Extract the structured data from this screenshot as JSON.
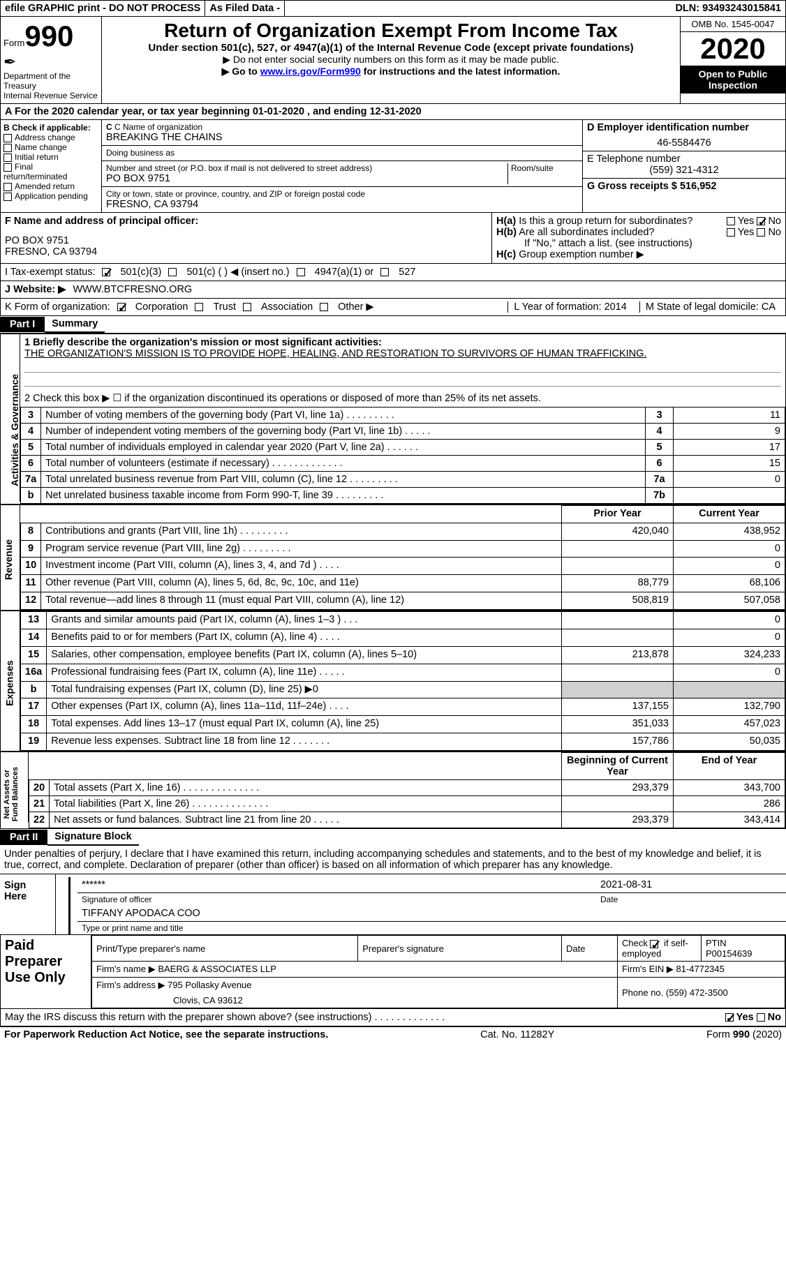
{
  "topbar": {
    "efile": "efile GRAPHIC print - DO NOT PROCESS",
    "asfiled": "As Filed Data -",
    "dln": "DLN: 93493243015841"
  },
  "header": {
    "form": "Form",
    "num": "990",
    "dept": "Department of the Treasury\nInternal Revenue Service",
    "title": "Return of Organization Exempt From Income Tax",
    "sub": "Under section 501(c), 527, or 4947(a)(1) of the Internal Revenue Code (except private foundations)",
    "note1": "▶ Do not enter social security numbers on this form as it may be made public.",
    "note2_pre": "▶ Go to ",
    "note2_link": "www.irs.gov/Form990",
    "note2_post": " for instructions and the latest information.",
    "omb": "OMB No. 1545-0047",
    "year": "2020",
    "open": "Open to Public Inspection"
  },
  "A": "A  For the 2020 calendar year, or tax year beginning 01-01-2020   , and ending 12-31-2020",
  "B": {
    "label": "B Check if applicable:",
    "items": [
      "Address change",
      "Name change",
      "Initial return",
      "Final return/terminated",
      "Amended return",
      "Application pending"
    ]
  },
  "C": {
    "label": "C Name of organization",
    "org": "BREAKING THE CHAINS",
    "dba_label": "Doing business as",
    "addr_label": "Number and street (or P.O. box if mail is not delivered to street address)",
    "room_label": "Room/suite",
    "addr": "PO BOX 9751",
    "city_label": "City or town, state or province, country, and ZIP or foreign postal code",
    "city": "FRESNO, CA  93794"
  },
  "D": {
    "label": "D Employer identification number",
    "val": "46-5584476"
  },
  "E": {
    "label": "E Telephone number",
    "val": "(559) 321-4312"
  },
  "G": {
    "label": "G Gross receipts $ 516,952"
  },
  "F": {
    "label": "F  Name and address of principal officer:",
    "l1": "PO BOX 9751",
    "l2": "FRESNO, CA  93794"
  },
  "H": {
    "a": "H(a)  Is this a group return for subordinates?",
    "yes": "Yes",
    "no": "No",
    "b": "H(b)  Are all subordinates included?",
    "bnote": "If \"No,\" attach a list. (see instructions)",
    "c": "H(c)  Group exemption number ▶"
  },
  "I": {
    "label": "I   Tax-exempt status:",
    "t1": "501(c)(3)",
    "t2": "501(c) (   ) ◀ (insert no.)",
    "t3": "4947(a)(1) or",
    "t4": "527"
  },
  "J": {
    "label": "J   Website: ▶",
    "val": "WWW.BTCFRESNO.ORG"
  },
  "K": {
    "label": "K Form of organization:",
    "o1": "Corporation",
    "o2": "Trust",
    "o3": "Association",
    "o4": "Other ▶"
  },
  "L": "L Year of formation: 2014",
  "M": "M State of legal domicile: CA",
  "partI": {
    "tag": "Part I",
    "name": "Summary"
  },
  "summary": {
    "l1": "1 Briefly describe the organization's mission or most significant activities:",
    "mission": "THE ORGANIZATION'S MISSION IS TO PROVIDE HOPE, HEALING, AND RESTORATION TO SURVIVORS OF HUMAN TRAFFICKING.",
    "l2": "2   Check this box ▶ ☐  if the organization discontinued its operations or disposed of more than 25% of its net assets.",
    "rows_ag": [
      {
        "n": "3",
        "t": "Number of voting members of the governing body (Part VI, line 1a)  .   .   .   .   .   .   .   .   .",
        "c": "3",
        "v": "11"
      },
      {
        "n": "4",
        "t": "Number of independent voting members of the governing body (Part VI, line 1b)   .    .    .    .    .",
        "c": "4",
        "v": "9"
      },
      {
        "n": "5",
        "t": "Total number of individuals employed in calendar year 2020 (Part V, line 2a)   .    .    .    .    .    .",
        "c": "5",
        "v": "17"
      },
      {
        "n": "6",
        "t": "Total number of volunteers (estimate if necessary)   .    .    .    .    .    .    .    .    .    .    .    .    .",
        "c": "6",
        "v": "15"
      },
      {
        "n": "7a",
        "t": "Total unrelated business revenue from Part VIII, column (C), line 12   .    .    .    .    .    .    .    .    .",
        "c": "7a",
        "v": "0"
      },
      {
        "n": "b",
        "t": "Net unrelated business taxable income from Form 990-T, line 39   .    .    .    .    .    .    .    .    .",
        "c": "7b",
        "v": ""
      }
    ],
    "hdr_prior": "Prior Year",
    "hdr_curr": "Current Year",
    "rows_rev": [
      {
        "n": "8",
        "t": "Contributions and grants (Part VIII, line 1h)   .    .    .    .    .    .    .    .    .",
        "p": "420,040",
        "c": "438,952"
      },
      {
        "n": "9",
        "t": "Program service revenue (Part VIII, line 2g)   .    .    .    .    .    .    .    .    .",
        "p": "",
        "c": "0"
      },
      {
        "n": "10",
        "t": "Investment income (Part VIII, column (A), lines 3, 4, and 7d )   .    .    .    .",
        "p": "",
        "c": "0"
      },
      {
        "n": "11",
        "t": "Other revenue (Part VIII, column (A), lines 5, 6d, 8c, 9c, 10c, and 11e)",
        "p": "88,779",
        "c": "68,106"
      },
      {
        "n": "12",
        "t": "Total revenue—add lines 8 through 11 (must equal Part VIII, column (A), line 12)",
        "p": "508,819",
        "c": "507,058"
      }
    ],
    "rows_exp": [
      {
        "n": "13",
        "t": "Grants and similar amounts paid (Part IX, column (A), lines 1–3 )   .    .    .",
        "p": "",
        "c": "0"
      },
      {
        "n": "14",
        "t": "Benefits paid to or for members (Part IX, column (A), line 4)   .    .    .    .",
        "p": "",
        "c": "0"
      },
      {
        "n": "15",
        "t": "Salaries, other compensation, employee benefits (Part IX, column (A), lines 5–10)",
        "p": "213,878",
        "c": "324,233"
      },
      {
        "n": "16a",
        "t": "Professional fundraising fees (Part IX, column (A), line 11e)   .    .    .    .    .",
        "p": "",
        "c": "0"
      },
      {
        "n": "b",
        "t": "Total fundraising expenses (Part IX, column (D), line 25) ▶0",
        "p": "GREY",
        "c": "GREY"
      },
      {
        "n": "17",
        "t": "Other expenses (Part IX, column (A), lines 11a–11d, 11f–24e)   .    .    .    .",
        "p": "137,155",
        "c": "132,790"
      },
      {
        "n": "18",
        "t": "Total expenses. Add lines 13–17 (must equal Part IX, column (A), line 25)",
        "p": "351,033",
        "c": "457,023"
      },
      {
        "n": "19",
        "t": "Revenue less expenses. Subtract line 18 from line 12 .    .    .    .    .    .    .",
        "p": "157,786",
        "c": "50,035"
      }
    ],
    "hdr_boy": "Beginning of Current Year",
    "hdr_eoy": "End of Year",
    "rows_net": [
      {
        "n": "20",
        "t": "Total assets (Part X, line 16)   .    .    .    .    .    .    .    .    .    .    .    .    .    .",
        "p": "293,379",
        "c": "343,700"
      },
      {
        "n": "21",
        "t": "Total liabilities (Part X, line 26)   .    .    .    .    .    .    .    .    .    .    .    .    .    .",
        "p": "",
        "c": "286"
      },
      {
        "n": "22",
        "t": "Net assets or fund balances. Subtract line 21 from line 20 .    .    .    .    .",
        "p": "293,379",
        "c": "343,414"
      }
    ]
  },
  "side": {
    "ag": "Activities & Governance",
    "rev": "Revenue",
    "exp": "Expenses",
    "net": "Net Assets or\nFund Balances"
  },
  "partII": {
    "tag": "Part II",
    "name": "Signature Block"
  },
  "declare": "Under penalties of perjury, I declare that I have examined this return, including accompanying schedules and statements, and to the best of my knowledge and belief, it is true, correct, and complete. Declaration of preparer (other than officer) is based on all information of which preparer has any knowledge.",
  "sign": {
    "here": "Sign Here",
    "stars": "******",
    "sigof": "Signature of officer",
    "date": "2021-08-31",
    "datel": "Date",
    "name": "TIFFANY APODACA COO",
    "namel": "Type or print name and title"
  },
  "paid": {
    "title": "Paid Preparer Use Only",
    "h1": "Print/Type preparer's name",
    "h2": "Preparer's signature",
    "h3": "Date",
    "h4a": "Check",
    "h4b": "if self-employed",
    "h5": "PTIN",
    "ptin": "P00154639",
    "firm": "Firm's name    ▶ BAERG & ASSOCIATES LLP",
    "ein": "Firm's EIN ▶ 81-4772345",
    "addr": "Firm's address ▶ 795 Pollasky Avenue",
    "addr2": "Clovis, CA  93612",
    "phone": "Phone no. (559) 472-3500"
  },
  "discuss": "May the IRS discuss this return with the preparer shown above? (see instructions)   .    .    .    .    .    .    .    .    .    .    .    .    .",
  "footer": {
    "left": "For Paperwork Reduction Act Notice, see the separate instructions.",
    "mid": "Cat. No. 11282Y",
    "right": "Form 990 (2020)"
  }
}
